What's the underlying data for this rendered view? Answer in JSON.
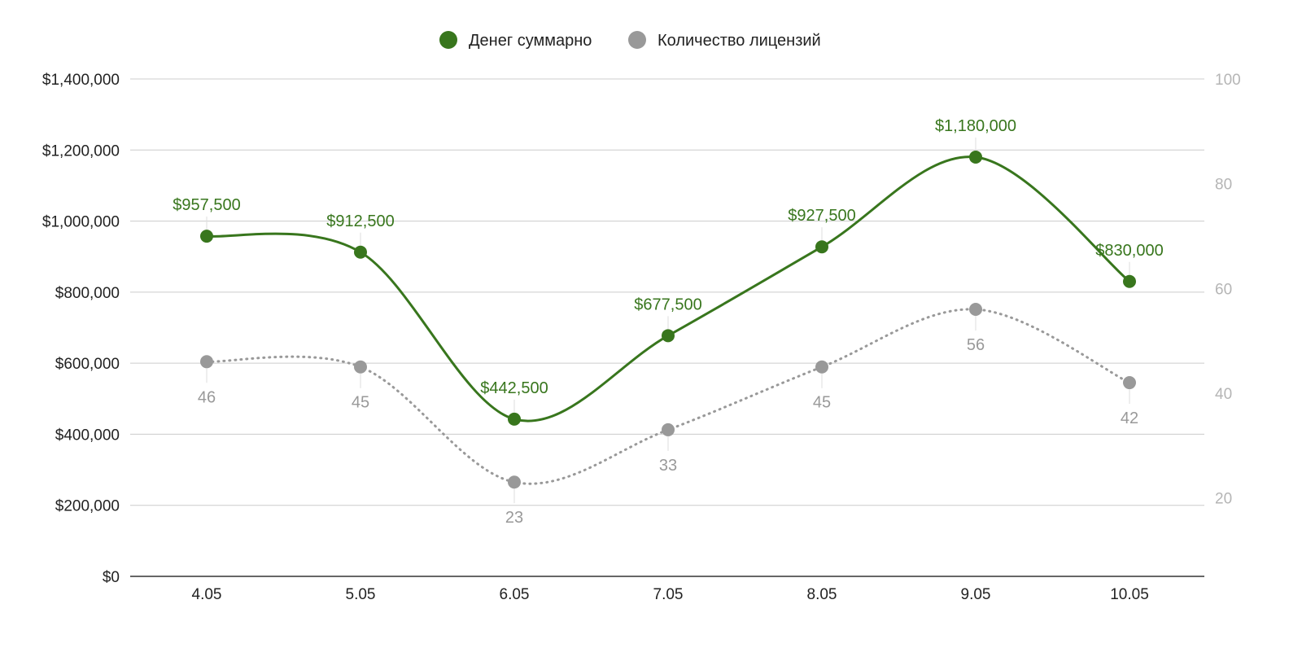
{
  "chart_data": {
    "type": "line",
    "title": "",
    "categories": [
      "4.05",
      "5.05",
      "6.05",
      "7.05",
      "8.05",
      "9.05",
      "10.05"
    ],
    "series": [
      {
        "name": "Денег суммарно",
        "axis": "left",
        "color": "#38761d",
        "line_style": "solid",
        "values": [
          957500,
          912500,
          442500,
          677500,
          927500,
          1180000,
          830000
        ],
        "labels": [
          "$957,500",
          "$912,500",
          "$442,500",
          "$677,500",
          "$927,500",
          "$1,180,000",
          "$830,000"
        ]
      },
      {
        "name": "Количество лицензий",
        "axis": "right",
        "color": "#999999",
        "line_style": "dotted",
        "values": [
          46,
          45,
          23,
          33,
          45,
          56,
          42
        ],
        "labels": [
          "46",
          "45",
          "23",
          "33",
          "45",
          "56",
          "42"
        ]
      }
    ],
    "y_left": {
      "range": [
        0,
        1400000
      ],
      "ticks": [
        0,
        200000,
        400000,
        600000,
        800000,
        1000000,
        1200000,
        1400000
      ],
      "tick_labels": [
        "$0",
        "$200,000",
        "$400,000",
        "$600,000",
        "$800,000",
        "$1,000,000",
        "$1,200,000",
        "$1,400,000"
      ]
    },
    "y_right": {
      "range": [
        5,
        100
      ],
      "ticks": [
        20,
        40,
        60,
        80,
        100
      ],
      "tick_labels": [
        "20",
        "40",
        "60",
        "80",
        "100"
      ]
    },
    "grid": true,
    "legend_position": "top-center",
    "xlabel": "",
    "ylabel": ""
  }
}
